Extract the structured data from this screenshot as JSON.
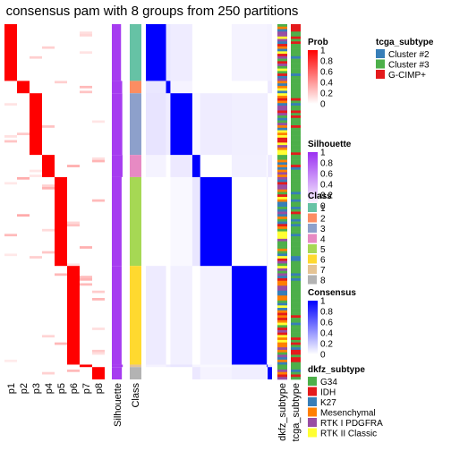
{
  "chart_data": {
    "type": "heatmap",
    "title": "consensus pam with 8 groups from 250 partitions",
    "prob_columns": [
      "p1",
      "p2",
      "p3",
      "p4",
      "p5",
      "p6",
      "p7",
      "p8"
    ],
    "annotation_columns": [
      "Silhouette",
      "Class"
    ],
    "right_annotation_columns": [
      "dkfz_subtype",
      "tcga_subtype"
    ],
    "groups": [
      {
        "class": "1",
        "size": 23,
        "prob_col": 1,
        "silhouette": 0.75
      },
      {
        "class": "2",
        "size": 5,
        "prob_col": 2,
        "silhouette": 0.85
      },
      {
        "class": "3",
        "size": 25,
        "prob_col": 3,
        "silhouette": 0.86
      },
      {
        "class": "4",
        "size": 9,
        "prob_col": 4,
        "silhouette": 0.88
      },
      {
        "class": "5",
        "size": 36,
        "prob_col": 5,
        "silhouette": 0.8
      },
      {
        "class": "6",
        "size": 40,
        "prob_col": 6,
        "silhouette": 0.8
      },
      {
        "class": "7",
        "size": 1,
        "prob_col": 7,
        "silhouette": 0.9
      },
      {
        "class": "8",
        "size": 5,
        "prob_col": 8,
        "silhouette": 0.82
      }
    ],
    "legends": {
      "prob": {
        "title": "Prob",
        "ticks": [
          "1",
          "0.8",
          "0.6",
          "0.4",
          "0.2",
          "0"
        ]
      },
      "silhouette": {
        "title": "Silhouette",
        "ticks": [
          "1",
          "0.8",
          "0.6",
          "0.4",
          "0.2",
          "0"
        ]
      },
      "class": {
        "title": "Class",
        "labels": [
          "1",
          "2",
          "3",
          "4",
          "5",
          "6",
          "7",
          "8"
        ],
        "colors": [
          "#66C2A5",
          "#FC8D62",
          "#8DA0CB",
          "#E78AC3",
          "#A6D854",
          "#FFD92F",
          "#E5C494",
          "#B3B3B3"
        ]
      },
      "consensus": {
        "title": "Consensus",
        "ticks": [
          "1",
          "0.8",
          "0.6",
          "0.4",
          "0.2",
          "0"
        ]
      },
      "dkfz_subtype": {
        "title": "dkfz_subtype",
        "labels": [
          "G34",
          "IDH",
          "K27",
          "Mesenchymal",
          "RTK I PDGFRA",
          "RTK II Classic"
        ],
        "colors": [
          "#4DAF4A",
          "#E41A1C",
          "#377EB8",
          "#FF7F00",
          "#984EA3",
          "#FFFF33"
        ]
      },
      "tcga_subtype": {
        "title": "tcga_subtype",
        "labels": [
          "Cluster #2",
          "Cluster #3",
          "G-CIMP+"
        ],
        "colors": [
          "#377EB8",
          "#4DAF4A",
          "#E41A1C"
        ]
      }
    }
  }
}
